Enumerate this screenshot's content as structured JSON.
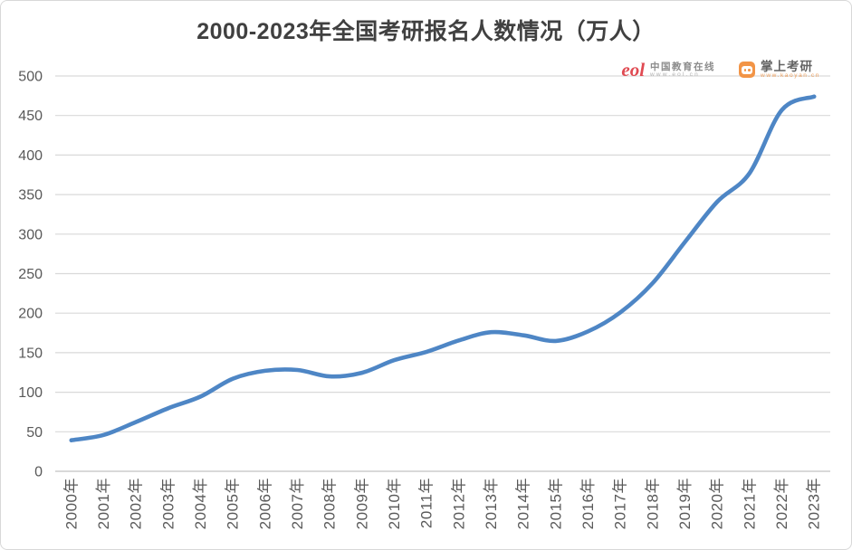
{
  "header": {
    "title": "2000-2023年全国考研报名人数情况（万人）"
  },
  "logos": {
    "eol": {
      "mark": "eol",
      "name": "中国教育在线",
      "url": "www.eol.cn"
    },
    "kaoyan": {
      "name": "掌上考研",
      "url": "www.kaoyan.cn"
    }
  },
  "chart_data": {
    "type": "line",
    "title": "2000-2023年全国考研报名人数情况（万人）",
    "unit": "万人",
    "categories": [
      "2000年",
      "2001年",
      "2002年",
      "2003年",
      "2004年",
      "2005年",
      "2006年",
      "2007年",
      "2008年",
      "2009年",
      "2010年",
      "2011年",
      "2012年",
      "2013年",
      "2014年",
      "2015年",
      "2016年",
      "2017年",
      "2018年",
      "2019年",
      "2020年",
      "2021年",
      "2022年",
      "2023年"
    ],
    "values": [
      39.2,
      46,
      62.4,
      79.7,
      94.5,
      117.2,
      127.1,
      128.2,
      120,
      124.6,
      140.6,
      151.1,
      165.6,
      176,
      172,
      164.9,
      177,
      201,
      238,
      290,
      341,
      377,
      457,
      474
    ],
    "ylim": [
      0,
      500
    ],
    "yticks": [
      0,
      50,
      100,
      150,
      200,
      250,
      300,
      350,
      400,
      450,
      500
    ],
    "grid": true,
    "legend": "none",
    "smoothed": true,
    "colors": {
      "line": "#4e86c5",
      "gridline": "#d9d9d9",
      "baseline": "#c2c2c2",
      "axis_labels": "#595959",
      "title": "#404040"
    }
  }
}
